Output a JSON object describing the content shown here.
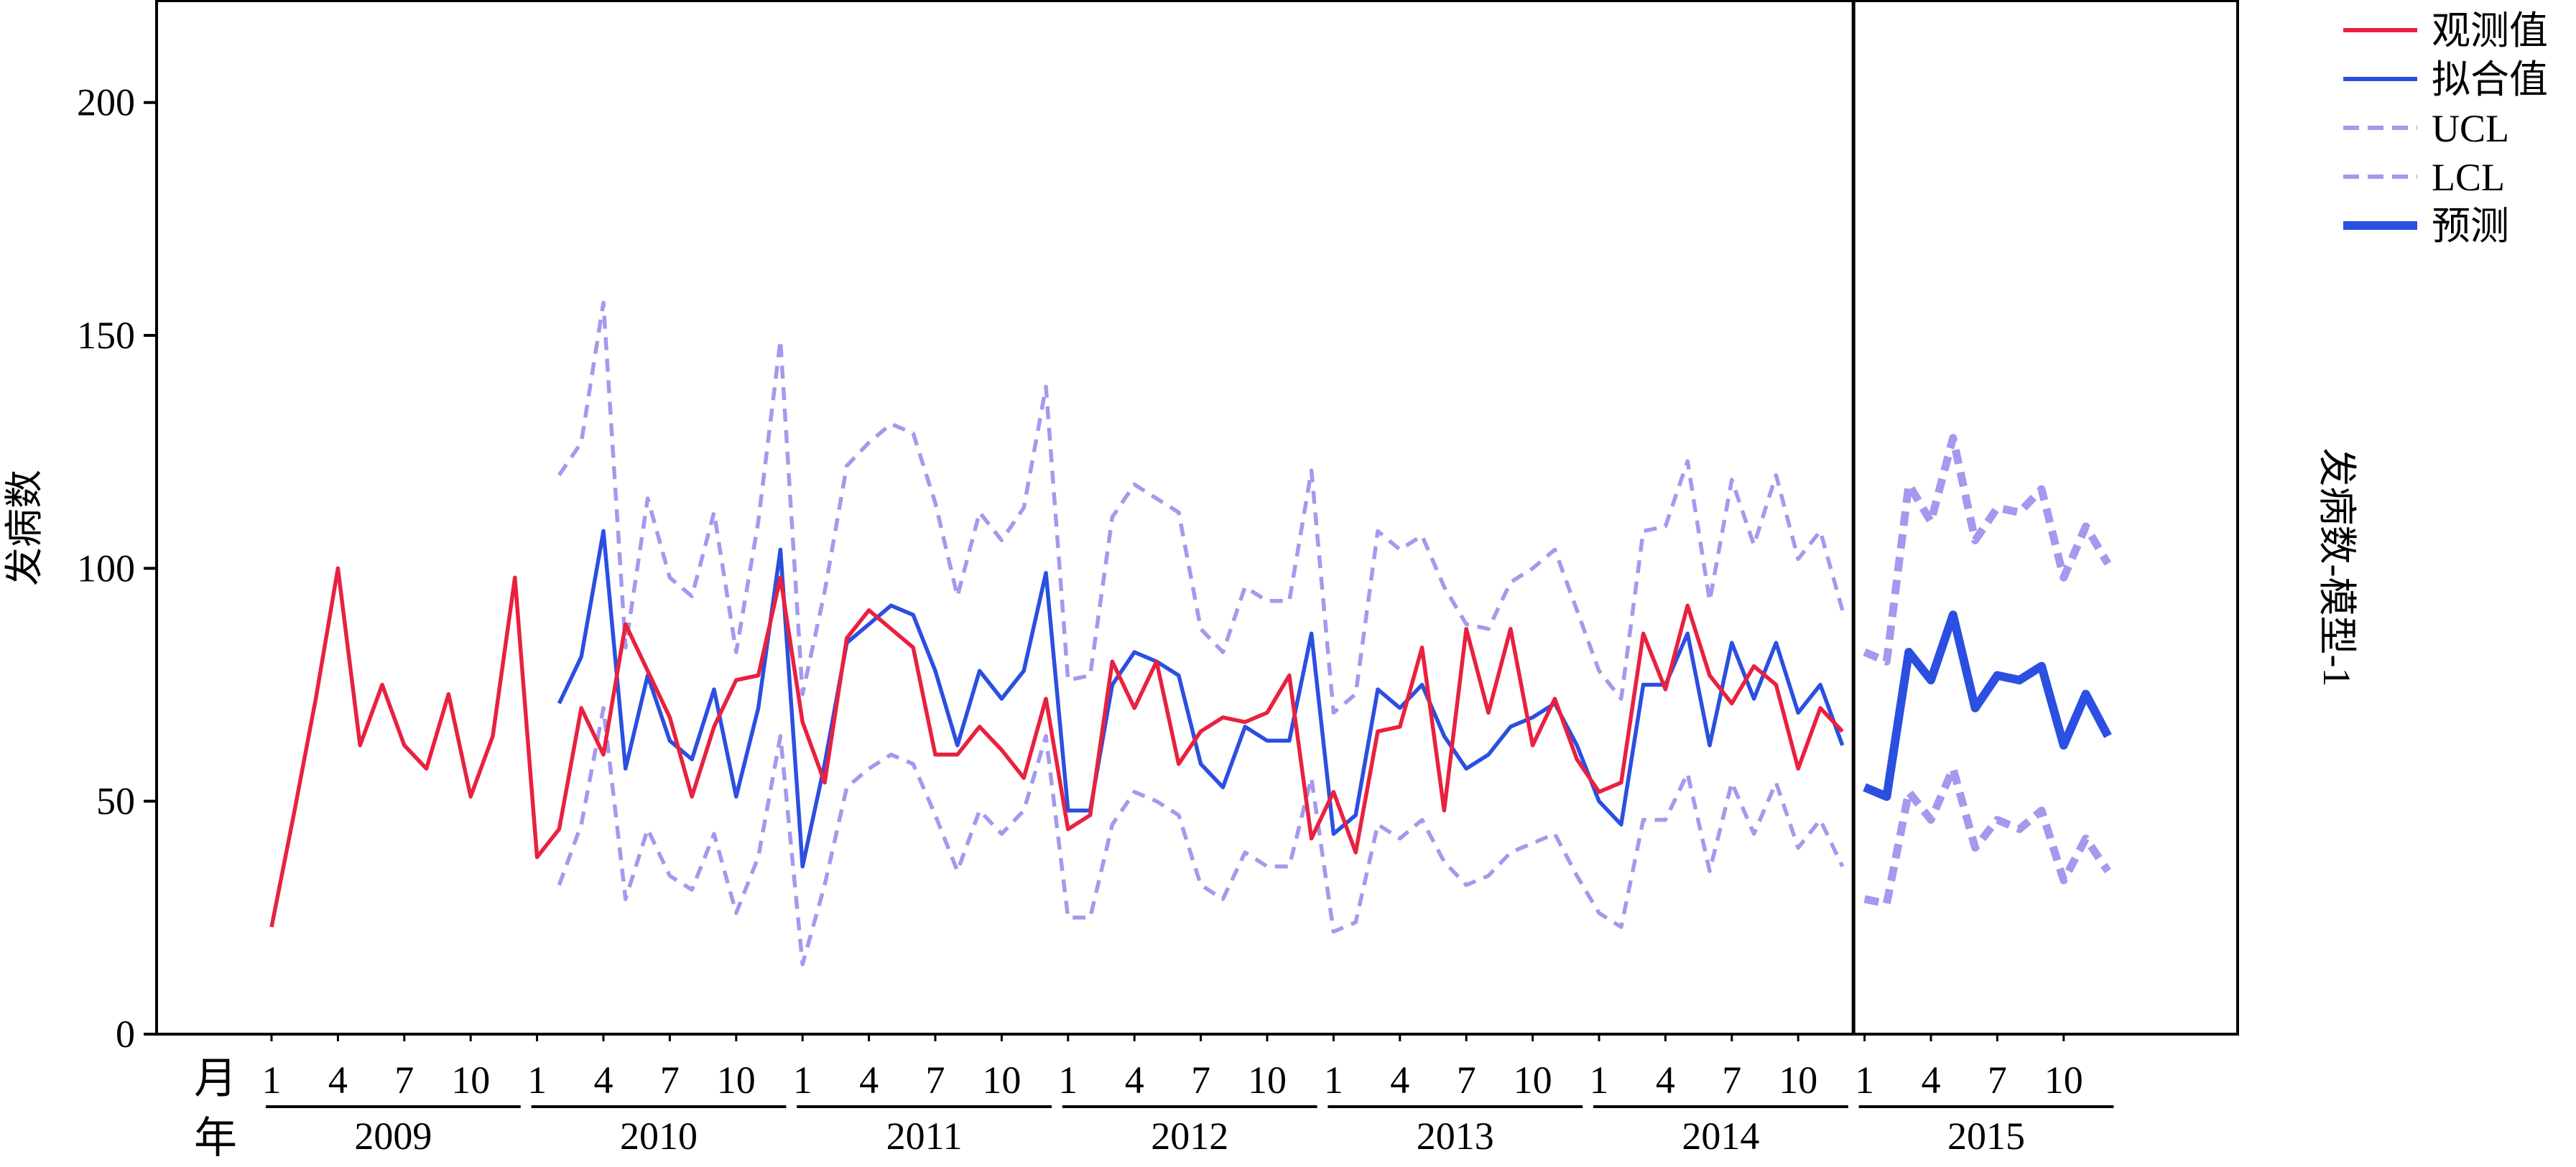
{
  "chart_data": {
    "type": "line",
    "y_label": "发病数",
    "right_label": "发病数-模型-1",
    "row_labels": {
      "month": "月",
      "year": "年"
    },
    "ylim": [
      0,
      222
    ],
    "y_ticks": [
      0,
      50,
      100,
      150,
      200
    ],
    "month_ticks": [
      "1",
      "4",
      "7",
      "10"
    ],
    "years": [
      "2009",
      "2010",
      "2011",
      "2012",
      "2013",
      "2014",
      "2015"
    ],
    "forecast_start": "2015-01",
    "colors": {
      "observed": "#e8213f",
      "fitted": "#2b4fe0",
      "limits": "#a598ee",
      "forecast": "#2b4fe0",
      "axis": "#000000"
    },
    "legend": {
      "position": "top-right",
      "items": [
        {
          "label": "观测值",
          "series": "observed",
          "style": "solid"
        },
        {
          "label": "拟合值",
          "series": "fitted",
          "style": "solid"
        },
        {
          "label": "UCL",
          "series": "ucl",
          "style": "dashed"
        },
        {
          "label": "LCL",
          "series": "lcl",
          "style": "dashed"
        },
        {
          "label": "预测",
          "series": "forecast",
          "style": "bold"
        }
      ]
    },
    "series": [
      {
        "name": "观测值",
        "key": "observed",
        "start": "2009-01",
        "values": [
          23,
          47,
          72,
          100,
          62,
          75,
          62,
          57,
          73,
          51,
          64,
          98,
          38,
          44,
          70,
          60,
          88,
          78,
          68,
          51,
          66,
          76,
          77,
          98,
          67,
          54,
          85,
          91,
          87,
          83,
          60,
          60,
          66,
          61,
          55,
          72,
          44,
          47,
          80,
          70,
          80,
          58,
          65,
          68,
          67,
          69,
          77,
          42,
          52,
          39,
          65,
          66,
          83,
          48,
          87,
          69,
          87,
          62,
          72,
          59,
          52,
          54,
          86,
          74,
          92,
          77,
          71,
          79,
          75,
          57,
          70,
          65
        ]
      },
      {
        "name": "拟合值",
        "key": "fitted",
        "start": "2010-02",
        "values": [
          71,
          81,
          108,
          57,
          77,
          63,
          59,
          74,
          51,
          70,
          104,
          36,
          58,
          84,
          88,
          92,
          90,
          78,
          62,
          78,
          72,
          78,
          99,
          48,
          48,
          75,
          82,
          80,
          77,
          58,
          53,
          66,
          63,
          63,
          86,
          43,
          47,
          74,
          70,
          75,
          64,
          57,
          60,
          66,
          68,
          71,
          62,
          50,
          45,
          75,
          75,
          86,
          62,
          84,
          72,
          84,
          69,
          75,
          62
        ]
      },
      {
        "name": "UCL",
        "key": "ucl",
        "start": "2010-02",
        "values": [
          120,
          127,
          157,
          83,
          115,
          98,
          94,
          112,
          82,
          110,
          149,
          73,
          95,
          122,
          127,
          131,
          129,
          114,
          94,
          112,
          106,
          113,
          139,
          76,
          77,
          111,
          118,
          115,
          112,
          87,
          82,
          96,
          93,
          93,
          121,
          69,
          73,
          108,
          104,
          107,
          96,
          88,
          87,
          97,
          100,
          104,
          91,
          78,
          72,
          108,
          109,
          123,
          93,
          119,
          105,
          120,
          102,
          108,
          91
        ]
      },
      {
        "name": "LCL",
        "key": "lcl",
        "start": "2010-02",
        "values": [
          32,
          45,
          70,
          29,
          44,
          34,
          31,
          43,
          26,
          38,
          64,
          15,
          32,
          53,
          57,
          60,
          58,
          47,
          35,
          48,
          43,
          48,
          64,
          25,
          25,
          45,
          52,
          50,
          47,
          32,
          29,
          39,
          36,
          36,
          55,
          22,
          24,
          45,
          42,
          46,
          37,
          32,
          34,
          39,
          41,
          43,
          34,
          26,
          23,
          46,
          46,
          56,
          35,
          54,
          43,
          54,
          40,
          46,
          36
        ]
      },
      {
        "name": "预测",
        "key": "forecast",
        "start": "2015-01",
        "values": [
          53,
          51,
          82,
          76,
          90,
          70,
          77,
          76,
          79,
          62,
          73,
          64
        ]
      },
      {
        "name": "UCL",
        "key": "forecast_ucl",
        "start": "2015-01",
        "values": [
          82,
          80,
          118,
          110,
          128,
          106,
          113,
          112,
          117,
          98,
          109,
          101
        ]
      },
      {
        "name": "LCL",
        "key": "forecast_lcl",
        "start": "2015-01",
        "values": [
          29,
          28,
          52,
          46,
          57,
          40,
          46,
          44,
          48,
          33,
          42,
          35
        ]
      }
    ]
  }
}
